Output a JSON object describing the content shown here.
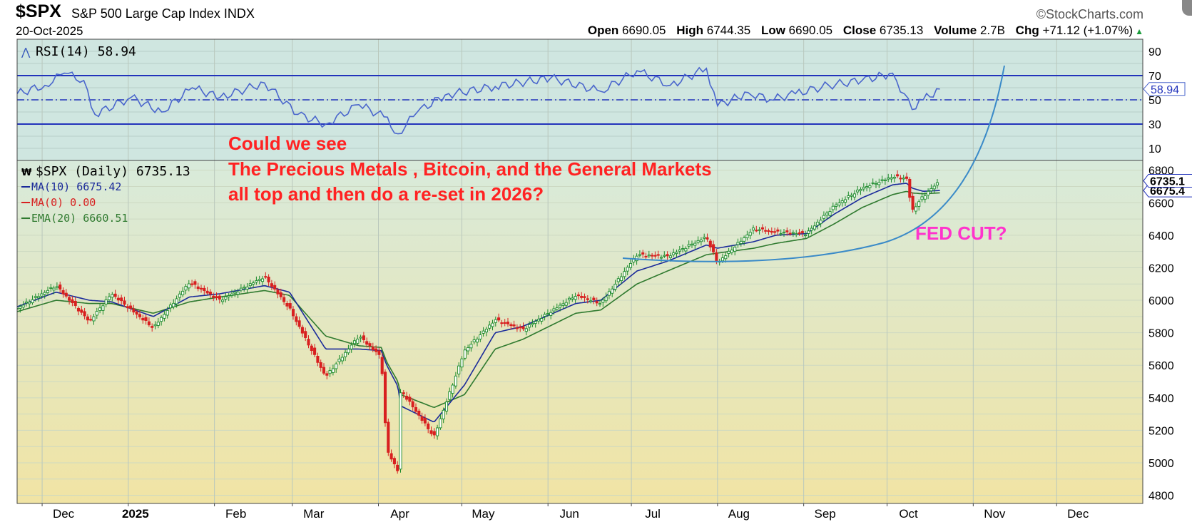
{
  "header": {
    "symbol": "$SPX",
    "name": "S&P 500 Large Cap Index",
    "exchange": "INDX",
    "date": "20-Oct-2025",
    "credit": "©StockCharts.com",
    "open_label": "Open",
    "open": "6690.05",
    "high_label": "High",
    "high": "6744.35",
    "low_label": "Low",
    "low": "6690.05",
    "close_label": "Close",
    "close": "6735.13",
    "volume_label": "Volume",
    "volume": "2.7B",
    "chg_label": "Chg",
    "chg": "+71.12 (+1.07%)"
  },
  "legend": {
    "rsi": "RSI(14) 58.94",
    "spx": "$SPX (Daily) 6735.13",
    "ma10": "MA(10) 6675.42",
    "ma0": "MA(0) 0.00",
    "ema20": "EMA(20) 6660.51"
  },
  "annotations": {
    "question_line1": "Could we see",
    "question_line2": "The Precious Metals , Bitcoin, and the General Markets",
    "question_line3": "all top and then do a re-set in 2026?",
    "fed_cut": "FED CUT?"
  },
  "colors": {
    "rsi_bg": "#cfe6e0",
    "price_bg_top": "#d8eadb",
    "price_bg_bottom": "#f1e4a4",
    "rsi_line": "#4a66cc",
    "ma10": "#1a2a9a",
    "ema20": "#2f7a2f",
    "up": "#1a8a2a",
    "down": "#d82020",
    "annotation": "#ff2222",
    "fed": "#ff33cc",
    "curve": "#3a8ac8"
  },
  "chart_data": [
    {
      "type": "line",
      "title": "RSI(14) 58.94",
      "ylim": [
        0,
        100
      ],
      "yticks": [
        90,
        70,
        50,
        30,
        10
      ],
      "reference_lines": [
        70,
        50,
        30
      ],
      "last_value_label": "58.94",
      "x": [
        "2024-11-22",
        "2024-12-02",
        "2024-12-09",
        "2024-12-16",
        "2024-12-20",
        "2025-01-02",
        "2025-01-13",
        "2025-01-24",
        "2025-02-03",
        "2025-02-19",
        "2025-03-03",
        "2025-03-13",
        "2025-03-25",
        "2025-04-03",
        "2025-04-08",
        "2025-04-15",
        "2025-04-25",
        "2025-05-13",
        "2025-06-02",
        "2025-06-20",
        "2025-07-03",
        "2025-07-15",
        "2025-07-28",
        "2025-08-01",
        "2025-08-12",
        "2025-08-20",
        "2025-08-29",
        "2025-09-10",
        "2025-09-22",
        "2025-10-03",
        "2025-10-10",
        "2025-10-14",
        "2025-10-20"
      ],
      "values": [
        55,
        62,
        72,
        66,
        38,
        52,
        40,
        60,
        52,
        64,
        38,
        30,
        46,
        36,
        22,
        40,
        54,
        61,
        68,
        57,
        74,
        62,
        76,
        45,
        56,
        50,
        55,
        62,
        66,
        72,
        42,
        50,
        58.94
      ]
    },
    {
      "type": "candlestick",
      "title": "$SPX (Daily) 6735.13",
      "ylim": [
        4750,
        6860
      ],
      "yticks": [
        6800,
        6600,
        6400,
        6200,
        6000,
        5800,
        5600,
        5400,
        5200,
        5000,
        4800
      ],
      "x_tick_labels": [
        "Dec",
        "2025",
        "Feb",
        "Mar",
        "Apr",
        "May",
        "Jun",
        "Jul",
        "Aug",
        "Sep",
        "Oct",
        "Nov",
        "Dec"
      ],
      "last_value_labels": [
        "6735.1",
        "6675.4"
      ],
      "series": [
        {
          "name": "$SPX",
          "x": [
            "2024-11-22",
            "2024-12-06",
            "2024-12-18",
            "2024-12-26",
            "2025-01-10",
            "2025-01-23",
            "2025-02-03",
            "2025-02-19",
            "2025-02-28",
            "2025-03-13",
            "2025-03-25",
            "2025-04-02",
            "2025-04-04",
            "2025-04-08",
            "2025-04-09",
            "2025-04-21",
            "2025-05-02",
            "2025-05-13",
            "2025-05-23",
            "2025-06-11",
            "2025-06-20",
            "2025-07-03",
            "2025-07-14",
            "2025-07-28",
            "2025-08-01",
            "2025-08-14",
            "2025-08-22",
            "2025-09-02",
            "2025-09-12",
            "2025-09-22",
            "2025-10-03",
            "2025-10-08",
            "2025-10-10",
            "2025-10-14",
            "2025-10-20"
          ],
          "values": [
            5950,
            6090,
            5870,
            6040,
            5830,
            6110,
            6000,
            6145,
            5950,
            5530,
            5780,
            5650,
            5080,
            4950,
            5450,
            5160,
            5690,
            5880,
            5820,
            6030,
            5980,
            6280,
            6270,
            6390,
            6230,
            6440,
            6420,
            6410,
            6580,
            6690,
            6760,
            6750,
            6550,
            6640,
            6735.13
          ]
        },
        {
          "name": "MA(10) 6675.42",
          "values": [
            5960,
            6050,
            6000,
            5990,
            5900,
            6020,
            6040,
            6090,
            6050,
            5700,
            5700,
            5690,
            5600,
            5470,
            5350,
            5250,
            5480,
            5800,
            5840,
            5980,
            6000,
            6180,
            6240,
            6340,
            6320,
            6360,
            6400,
            6410,
            6530,
            6630,
            6710,
            6720,
            6690,
            6670,
            6675.42
          ]
        },
        {
          "name": "EMA(20) 6660.51",
          "values": [
            5930,
            6000,
            5980,
            5980,
            5920,
            5990,
            6020,
            6060,
            6030,
            5780,
            5720,
            5710,
            5620,
            5500,
            5420,
            5340,
            5420,
            5700,
            5760,
            5920,
            5940,
            6100,
            6180,
            6280,
            6290,
            6320,
            6350,
            6380,
            6470,
            6570,
            6650,
            6670,
            6660,
            6655,
            6660.51
          ]
        }
      ]
    }
  ]
}
